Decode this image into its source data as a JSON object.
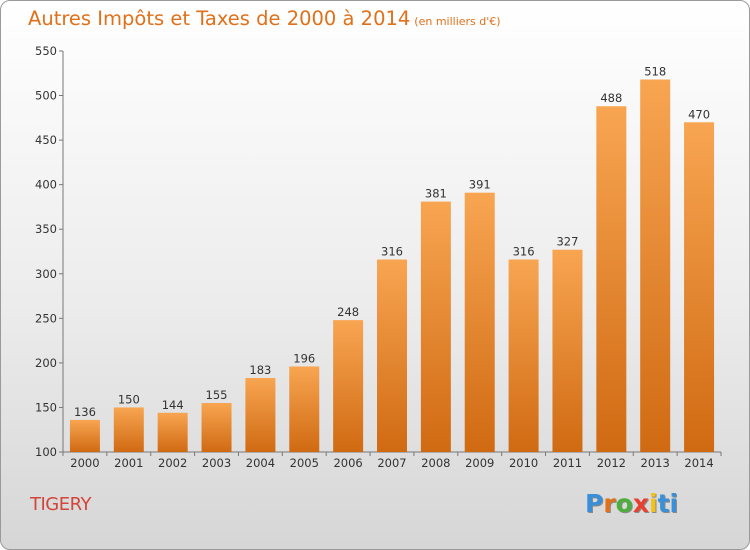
{
  "chart_data": {
    "type": "bar",
    "title": "Autres Impôts et Taxes de 2000 à 2014",
    "subtitle": "(en milliers d'€)",
    "categories": [
      "2000",
      "2001",
      "2002",
      "2003",
      "2004",
      "2005",
      "2006",
      "2007",
      "2008",
      "2009",
      "2010",
      "2011",
      "2012",
      "2013",
      "2014"
    ],
    "values": [
      136,
      150,
      144,
      155,
      183,
      196,
      248,
      316,
      381,
      391,
      316,
      327,
      488,
      518,
      470
    ],
    "ylim": [
      100,
      550
    ],
    "yticks": [
      100,
      150,
      200,
      250,
      300,
      350,
      400,
      450,
      500,
      550
    ],
    "grid": false,
    "bar_color": "#f0902e"
  },
  "place_label": "TIGERY",
  "brand": {
    "letters": [
      "P",
      "r",
      "o",
      "x",
      "i",
      "ti"
    ]
  }
}
